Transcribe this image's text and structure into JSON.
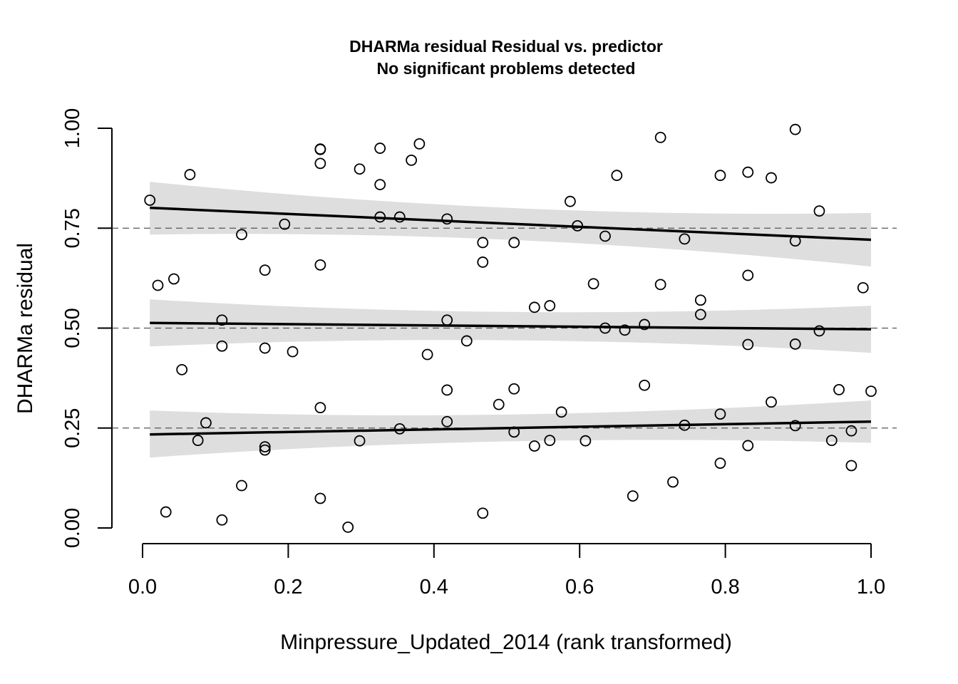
{
  "chart_data": {
    "type": "scatter",
    "title": "DHARMa residual Residual vs. predictor",
    "subtitle": "No significant problems detected",
    "xlabel": "Minpressure_Updated_2014 (rank transformed)",
    "ylabel": "DHARMa residual",
    "xlim": [
      0.0,
      1.0
    ],
    "ylim": [
      0.0,
      1.0
    ],
    "x_ticks": [
      "0.0",
      "0.2",
      "0.4",
      "0.6",
      "0.8",
      "1.0"
    ],
    "y_ticks": [
      "0.00",
      "0.25",
      "0.50",
      "0.75",
      "1.00"
    ],
    "reference_lines": [
      0.25,
      0.5,
      0.75
    ],
    "quantile_fits": [
      {
        "quantile": 0.25,
        "x": [
          0.01,
          1.0
        ],
        "y": [
          0.234,
          0.266
        ],
        "band_lower": [
          0.176,
          0.213
        ],
        "band_upper": [
          0.294,
          0.319
        ]
      },
      {
        "quantile": 0.5,
        "x": [
          0.01,
          1.0
        ],
        "y": [
          0.513,
          0.497
        ],
        "band_lower": [
          0.454,
          0.438
        ],
        "band_upper": [
          0.572,
          0.556
        ]
      },
      {
        "quantile": 0.75,
        "x": [
          0.01,
          1.0
        ],
        "y": [
          0.801,
          0.721
        ],
        "band_lower": [
          0.734,
          0.654
        ],
        "band_upper": [
          0.866,
          0.788
        ]
      }
    ],
    "points": [
      [
        0.01,
        0.82
      ],
      [
        0.021,
        0.607
      ],
      [
        0.032,
        0.04
      ],
      [
        0.043,
        0.623
      ],
      [
        0.054,
        0.396
      ],
      [
        0.065,
        0.884
      ],
      [
        0.076,
        0.219
      ],
      [
        0.087,
        0.263
      ],
      [
        0.109,
        0.52
      ],
      [
        0.109,
        0.455
      ],
      [
        0.109,
        0.02
      ],
      [
        0.136,
        0.734
      ],
      [
        0.136,
        0.106
      ],
      [
        0.168,
        0.645
      ],
      [
        0.168,
        0.45
      ],
      [
        0.168,
        0.203
      ],
      [
        0.168,
        0.195
      ],
      [
        0.195,
        0.76
      ],
      [
        0.206,
        0.441
      ],
      [
        0.244,
        0.948
      ],
      [
        0.244,
        0.947
      ],
      [
        0.244,
        0.912
      ],
      [
        0.244,
        0.658
      ],
      [
        0.244,
        0.301
      ],
      [
        0.244,
        0.074
      ],
      [
        0.282,
        0.002
      ],
      [
        0.298,
        0.898
      ],
      [
        0.298,
        0.218
      ],
      [
        0.326,
        0.95
      ],
      [
        0.326,
        0.859
      ],
      [
        0.326,
        0.778
      ],
      [
        0.353,
        0.778
      ],
      [
        0.353,
        0.248
      ],
      [
        0.369,
        0.92
      ],
      [
        0.38,
        0.961
      ],
      [
        0.391,
        0.434
      ],
      [
        0.418,
        0.773
      ],
      [
        0.418,
        0.52
      ],
      [
        0.418,
        0.345
      ],
      [
        0.418,
        0.266
      ],
      [
        0.445,
        0.468
      ],
      [
        0.467,
        0.714
      ],
      [
        0.467,
        0.665
      ],
      [
        0.467,
        0.037
      ],
      [
        0.489,
        0.309
      ],
      [
        0.51,
        0.714
      ],
      [
        0.51,
        0.348
      ],
      [
        0.51,
        0.24
      ],
      [
        0.538,
        0.552
      ],
      [
        0.538,
        0.205
      ],
      [
        0.559,
        0.556
      ],
      [
        0.559,
        0.219
      ],
      [
        0.575,
        0.29
      ],
      [
        0.587,
        0.817
      ],
      [
        0.597,
        0.756
      ],
      [
        0.608,
        0.218
      ],
      [
        0.619,
        0.611
      ],
      [
        0.635,
        0.73
      ],
      [
        0.635,
        0.5
      ],
      [
        0.651,
        0.882
      ],
      [
        0.662,
        0.495
      ],
      [
        0.673,
        0.08
      ],
      [
        0.689,
        0.509
      ],
      [
        0.689,
        0.357
      ],
      [
        0.711,
        0.977
      ],
      [
        0.711,
        0.609
      ],
      [
        0.728,
        0.115
      ],
      [
        0.744,
        0.723
      ],
      [
        0.744,
        0.257
      ],
      [
        0.766,
        0.57
      ],
      [
        0.766,
        0.534
      ],
      [
        0.793,
        0.882
      ],
      [
        0.793,
        0.285
      ],
      [
        0.793,
        0.162
      ],
      [
        0.831,
        0.89
      ],
      [
        0.831,
        0.632
      ],
      [
        0.831,
        0.459
      ],
      [
        0.831,
        0.206
      ],
      [
        0.863,
        0.876
      ],
      [
        0.863,
        0.315
      ],
      [
        0.896,
        0.997
      ],
      [
        0.896,
        0.718
      ],
      [
        0.896,
        0.46
      ],
      [
        0.896,
        0.256
      ],
      [
        0.929,
        0.793
      ],
      [
        0.929,
        0.493
      ],
      [
        0.946,
        0.219
      ],
      [
        0.956,
        0.346
      ],
      [
        0.973,
        0.243
      ],
      [
        0.973,
        0.156
      ],
      [
        0.989,
        0.601
      ],
      [
        1.0,
        0.342
      ]
    ],
    "colors": {
      "band": "#dedede",
      "line": "#000000",
      "point_stroke": "#000000",
      "reference_line": "#555555"
    }
  }
}
